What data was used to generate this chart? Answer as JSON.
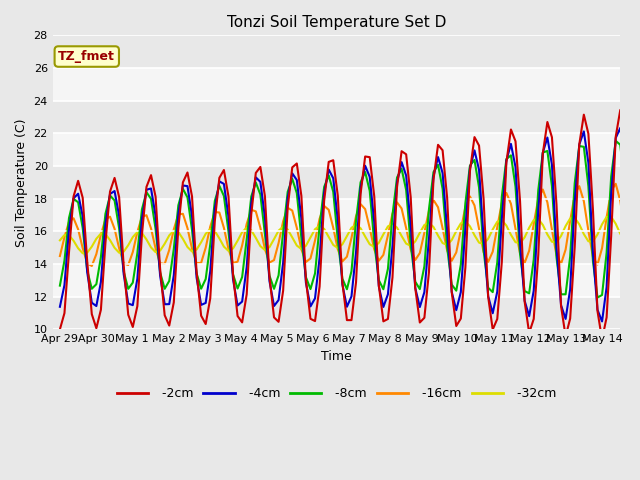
{
  "title": "Tonzi Soil Temperature Set D",
  "xlabel": "Time",
  "ylabel": "Soil Temperature (C)",
  "ylim": [
    10,
    28
  ],
  "annotation": "TZ_fmet",
  "bg_color": "#e8e8e8",
  "series": {
    "-2cm": {
      "color": "#cc0000",
      "lw": 1.5
    },
    "-4cm": {
      "color": "#0000cc",
      "lw": 1.5
    },
    "-8cm": {
      "color": "#00bb00",
      "lw": 1.5
    },
    "-16cm": {
      "color": "#ff8800",
      "lw": 1.5
    },
    "-32cm": {
      "color": "#dddd00",
      "lw": 1.5
    }
  },
  "xtick_labels": [
    "Apr 29",
    "Apr 30",
    "May 1",
    "May 2",
    "May 3",
    "May 4",
    "May 5",
    "May 6",
    "May 7",
    "May 8",
    "May 9",
    "May 10",
    "May 11",
    "May 12",
    "May 13",
    "May 14"
  ],
  "xtick_positions": [
    0,
    1,
    2,
    3,
    4,
    5,
    6,
    7,
    8,
    9,
    10,
    11,
    12,
    13,
    14,
    15
  ],
  "ytick_positions": [
    10,
    12,
    14,
    16,
    18,
    20,
    22,
    24,
    26,
    28
  ],
  "figsize": [
    6.4,
    4.8
  ],
  "dpi": 100
}
